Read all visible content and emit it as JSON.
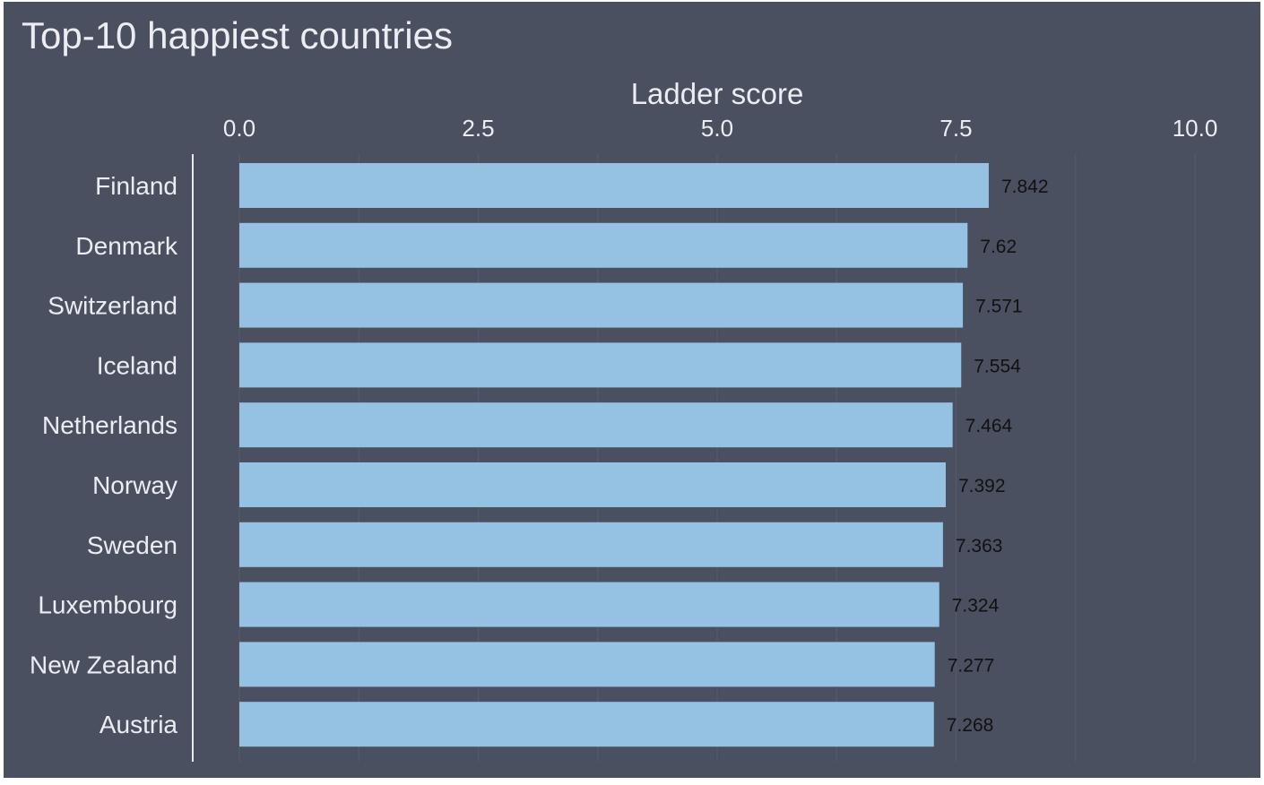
{
  "title": "Top-10 happiest countries",
  "colors": {
    "background": "#4b5061",
    "bar": "#95c1e2",
    "text": "#ecedf2",
    "value_label": "#111111",
    "axis_line": "#e8e8ee",
    "grid": "#52576a"
  },
  "chart_data": {
    "type": "bar",
    "orientation": "horizontal",
    "title": "Top-10 happiest countries",
    "xlabel": "Ladder score",
    "ylabel": "",
    "xlim": [
      0,
      10
    ],
    "x_ticks": [
      "0.0",
      "2.5",
      "5.0",
      "7.5",
      "10.0"
    ],
    "x_axis_position": "top",
    "grid": true,
    "categories": [
      "Finland",
      "Denmark",
      "Switzerland",
      "Iceland",
      "Netherlands",
      "Norway",
      "Sweden",
      "Luxembourg",
      "New Zealand",
      "Austria"
    ],
    "values": [
      7.842,
      7.62,
      7.571,
      7.554,
      7.464,
      7.392,
      7.363,
      7.324,
      7.277,
      7.268
    ],
    "value_labels": [
      "7.842",
      "7.62",
      "7.571",
      "7.554",
      "7.464",
      "7.392",
      "7.363",
      "7.324",
      "7.277",
      "7.268"
    ]
  }
}
